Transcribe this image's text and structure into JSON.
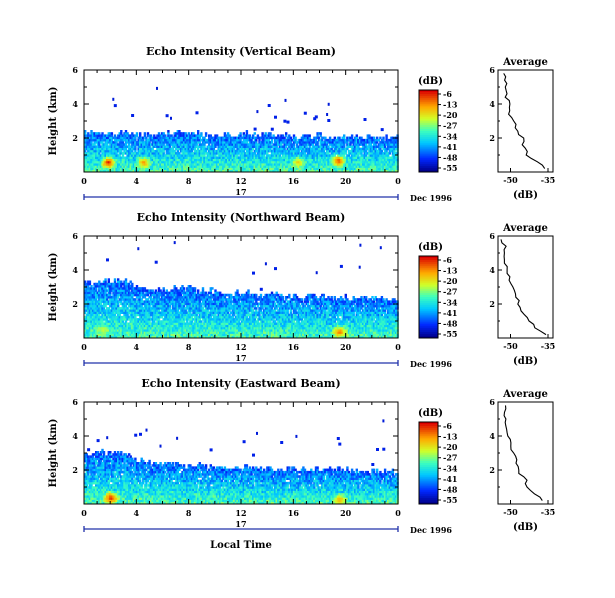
{
  "chart_data": [
    {
      "type": "heatmap",
      "title": "Echo Intensity (Vertical Beam)",
      "ylabel": "Height (km)",
      "xlabel": "",
      "xlim": [
        0,
        24
      ],
      "ylim": [
        0,
        6
      ],
      "xticks": [
        "0",
        "4",
        "8",
        "12",
        "16",
        "20",
        "0"
      ],
      "yticks": [
        "2",
        "4",
        "6"
      ],
      "day_label": "17",
      "date_label": "Dec 1996",
      "colorbar": {
        "unit": "(dB)",
        "labels": [
          "-6",
          "-13",
          "-20",
          "-27",
          "-34",
          "-41",
          "-48",
          "-55"
        ]
      },
      "profile": {
        "title": "Average",
        "xlabel": "(dB)",
        "xticks": [
          "-50",
          "-35"
        ],
        "yticks": [
          "2",
          "4",
          "6"
        ],
        "heights": [
          0.2,
          0.6,
          1.0,
          1.4,
          1.8,
          2.2,
          2.6,
          3.0,
          3.4,
          3.8,
          4.2,
          4.6,
          5.0,
          5.4,
          5.8
        ],
        "values": [
          -36,
          -40,
          -43,
          -44,
          -45,
          -46,
          -48,
          -49,
          -50,
          -50.5,
          -51,
          -51.5,
          -52,
          -52,
          -52.5
        ]
      },
      "top_approx_km": [
        2.3,
        2.3,
        2.3,
        2.3,
        2.2,
        2.2,
        2.2,
        2.2,
        2.2,
        2.2,
        2.1,
        2.1,
        2.2,
        2.1,
        2.1,
        2.1,
        2.0,
        2.0,
        2.1,
        2.0,
        2.0,
        2.0,
        2.0,
        2.0,
        2.0
      ],
      "hotspots": [
        {
          "x": 1.8,
          "y": 0.5,
          "level": 1.0
        },
        {
          "x": 4.5,
          "y": 0.5,
          "level": 0.85
        },
        {
          "x": 19.4,
          "y": 0.6,
          "level": 0.95
        },
        {
          "x": 16.3,
          "y": 0.5,
          "level": 0.75
        }
      ]
    },
    {
      "type": "heatmap",
      "title": "Echo Intensity (Northward Beam)",
      "ylabel": "Height (km)",
      "xlabel": "",
      "xlim": [
        0,
        24
      ],
      "ylim": [
        0,
        6
      ],
      "xticks": [
        "0",
        "4",
        "8",
        "12",
        "16",
        "20",
        "0"
      ],
      "yticks": [
        "2",
        "4",
        "6"
      ],
      "day_label": "17",
      "date_label": "Dec 1996",
      "colorbar": {
        "unit": "(dB)",
        "labels": [
          "-6",
          "-13",
          "-20",
          "-27",
          "-34",
          "-41",
          "-48",
          "-55"
        ]
      },
      "profile": {
        "title": "Average",
        "xlabel": "(dB)",
        "xticks": [
          "-50",
          "-35"
        ],
        "yticks": [
          "2",
          "4",
          "6"
        ],
        "heights": [
          0.2,
          0.6,
          1.0,
          1.4,
          1.8,
          2.2,
          2.6,
          3.0,
          3.4,
          3.8,
          4.2,
          4.6,
          5.0,
          5.4,
          5.8
        ],
        "values": [
          -36,
          -40,
          -43,
          -45,
          -46,
          -47,
          -48,
          -49,
          -50,
          -51,
          -52,
          -52,
          -52.5,
          -52.5,
          -53
        ]
      },
      "top_approx_km": [
        3.2,
        3.2,
        3.3,
        3.3,
        3.0,
        2.8,
        2.8,
        2.9,
        2.9,
        2.7,
        2.7,
        2.6,
        2.6,
        2.5,
        2.5,
        2.5,
        2.4,
        2.4,
        2.4,
        2.3,
        2.3,
        2.3,
        2.3,
        2.3,
        2.3
      ],
      "hotspots": [
        {
          "x": 19.5,
          "y": 0.3,
          "level": 0.9
        },
        {
          "x": 1.4,
          "y": 0.4,
          "level": 0.65
        }
      ]
    },
    {
      "type": "heatmap",
      "title": "Echo Intensity (Eastward Beam)",
      "ylabel": "Height (km)",
      "xlabel": "Local Time",
      "xlim": [
        0,
        24
      ],
      "ylim": [
        0,
        6
      ],
      "xticks": [
        "0",
        "4",
        "8",
        "12",
        "16",
        "20",
        "0"
      ],
      "yticks": [
        "2",
        "4",
        "6"
      ],
      "day_label": "17",
      "date_label": "Dec 1996",
      "colorbar": {
        "unit": "(dB)",
        "labels": [
          "-6",
          "-13",
          "-20",
          "-27",
          "-34",
          "-41",
          "-48",
          "-55"
        ]
      },
      "profile": {
        "title": "Average",
        "xlabel": "(dB)",
        "xticks": [
          "-50",
          "-35"
        ],
        "yticks": [
          "2",
          "4",
          "6"
        ],
        "heights": [
          0.2,
          0.6,
          1.0,
          1.4,
          1.8,
          2.2,
          2.6,
          3.0,
          3.4,
          3.8,
          4.2,
          4.6,
          5.0,
          5.4,
          5.8
        ],
        "values": [
          -37,
          -40,
          -43,
          -44,
          -46,
          -47,
          -48,
          -49,
          -50,
          -50,
          -51,
          -51.5,
          -52,
          -52,
          -52.5
        ]
      },
      "top_approx_km": [
        2.8,
        3.0,
        2.9,
        2.9,
        2.6,
        2.4,
        2.3,
        2.3,
        2.2,
        2.2,
        2.2,
        2.1,
        2.1,
        2.1,
        2.0,
        2.0,
        2.0,
        2.0,
        2.0,
        2.0,
        2.0,
        1.9,
        1.9,
        1.9,
        1.9
      ],
      "hotspots": [
        {
          "x": 2.0,
          "y": 0.3,
          "level": 1.0
        },
        {
          "x": 19.5,
          "y": 0.2,
          "level": 0.8
        }
      ]
    }
  ]
}
